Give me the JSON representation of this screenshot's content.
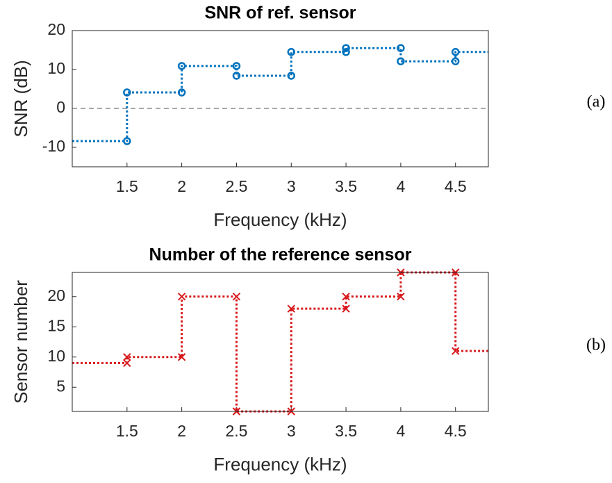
{
  "chart_data": [
    {
      "type": "line",
      "title": "SNR of ref. sensor",
      "xlabel": "Frequency (kHz)",
      "ylabel": "SNR (dB)",
      "panel_label": "(a)",
      "xlim": [
        1,
        4.8
      ],
      "xticks": [
        1.5,
        2,
        2.5,
        3,
        3.5,
        4,
        4.5
      ],
      "ylim": [
        -15,
        20
      ],
      "yticks": [
        -10,
        0,
        10,
        20
      ],
      "hline": 0,
      "series": [
        {
          "color": "#0072bd",
          "marker": "o",
          "x": [
            1,
            1.5,
            1.5,
            2,
            2,
            2.5,
            2.5,
            3,
            3,
            3.5,
            3.5,
            4,
            4,
            4.5,
            4.5,
            4.8
          ],
          "values": [
            -8.4,
            -8.4,
            4.1,
            4.1,
            10.9,
            10.9,
            8.4,
            8.4,
            14.5,
            14.5,
            15.5,
            15.5,
            12.1,
            12.1,
            14.5,
            14.5
          ]
        }
      ]
    },
    {
      "type": "line",
      "title": "Number of the reference sensor",
      "xlabel": "Frequency (kHz)",
      "ylabel": "Sensor number",
      "panel_label": "(b)",
      "xlim": [
        1,
        4.8
      ],
      "xticks": [
        1.5,
        2,
        2.5,
        3,
        3.5,
        4,
        4.5
      ],
      "ylim": [
        1,
        24
      ],
      "yticks": [
        5,
        10,
        15,
        20
      ],
      "series": [
        {
          "color": "#d7191c",
          "marker": "x",
          "x": [
            1,
            1.5,
            1.5,
            2,
            2,
            2.5,
            2.5,
            3,
            3,
            3.5,
            3.5,
            4,
            4,
            4.5,
            4.5,
            4.8
          ],
          "values": [
            9,
            9,
            10,
            10,
            20,
            20,
            1,
            1,
            18,
            18,
            20,
            20,
            24,
            24,
            11,
            11
          ]
        }
      ]
    }
  ]
}
